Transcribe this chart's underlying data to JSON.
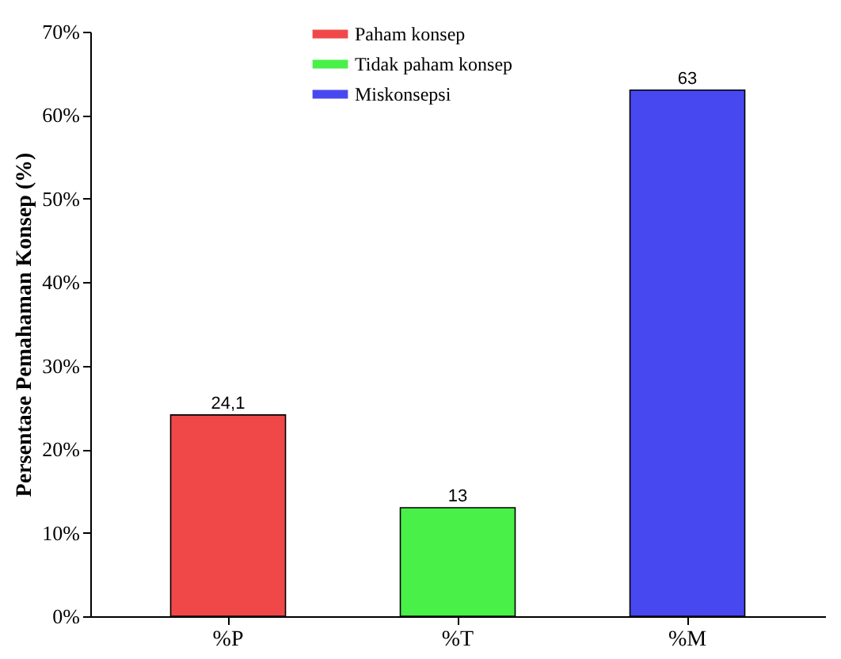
{
  "chart_data": {
    "type": "bar",
    "ylabel": "Persentase Pemahaman Konsep (%)",
    "categories": [
      "%P",
      "%T",
      "%M"
    ],
    "series": [
      {
        "name": "Paham konsep",
        "color": "#f04848",
        "values": [
          24.1,
          null,
          null
        ],
        "value_labels": [
          "24,1",
          null,
          null
        ]
      },
      {
        "name": "Tidak paham konsep",
        "color": "#48f048",
        "values": [
          null,
          13,
          null
        ],
        "value_labels": [
          null,
          "13",
          null
        ]
      },
      {
        "name": "Miskonsepsi",
        "color": "#4848f0",
        "values": [
          null,
          null,
          63
        ],
        "value_labels": [
          null,
          null,
          "63"
        ]
      }
    ],
    "ylim": [
      0,
      70
    ],
    "yticks": [
      {
        "value": 0,
        "label": "0%"
      },
      {
        "value": 10,
        "label": "10%"
      },
      {
        "value": 20,
        "label": "20%"
      },
      {
        "value": 30,
        "label": "30%"
      },
      {
        "value": 40,
        "label": "40%"
      },
      {
        "value": 50,
        "label": "50%"
      },
      {
        "value": 60,
        "label": "60%"
      },
      {
        "value": 70,
        "label": "70%"
      }
    ],
    "legend": "top",
    "grid": false
  }
}
